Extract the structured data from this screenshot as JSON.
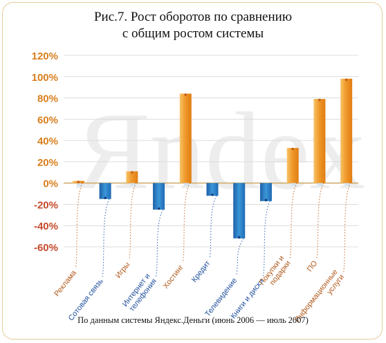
{
  "chart_data": {
    "type": "bar",
    "title_lines": [
      "Рис.7. Рост оборотов по сравнению",
      "с общим ростом системы"
    ],
    "source": "По данным системы Яндекс.Деньги (июнь 2006 — июль 2007)",
    "watermark": "Яndex",
    "ylim": [
      -60,
      120
    ],
    "yticks": [
      "120%",
      "100%",
      "80%",
      "60%",
      "40%",
      "20%",
      "0%",
      "-20%",
      "-40%",
      "-60%"
    ],
    "grid": "horizontal",
    "colors": {
      "positive": "#f0a63a",
      "negative": "#2f7fc4",
      "positive_label": "#b05a1c",
      "negative_label": "#1f4f9c",
      "tick_positive": "#d97e1c",
      "tick_negative": "#c44a2a"
    },
    "categories": [
      "Реклама",
      "Сотовая связь",
      "Игры",
      "Интернет и телефония",
      "Хостинг",
      "Кредит",
      "Телевидение",
      "Книги и диски",
      "Покупки и подарки",
      "ПО",
      "Информационные услуги"
    ],
    "label_lines": [
      [
        "Реклама"
      ],
      [
        "Сотовая связь"
      ],
      [
        "Игры"
      ],
      [
        "Интернет и",
        "телефония"
      ],
      [
        "Хостинг"
      ],
      [
        "Кредит"
      ],
      [
        "Телевидение"
      ],
      [
        "Книги и диски"
      ],
      [
        "Покупки и",
        "подарки"
      ],
      [
        "ПО"
      ],
      [
        "Информационные",
        "услуги"
      ]
    ],
    "values": [
      2,
      -15,
      11,
      -25,
      84,
      -12,
      -52,
      -17,
      33,
      79,
      98
    ]
  }
}
